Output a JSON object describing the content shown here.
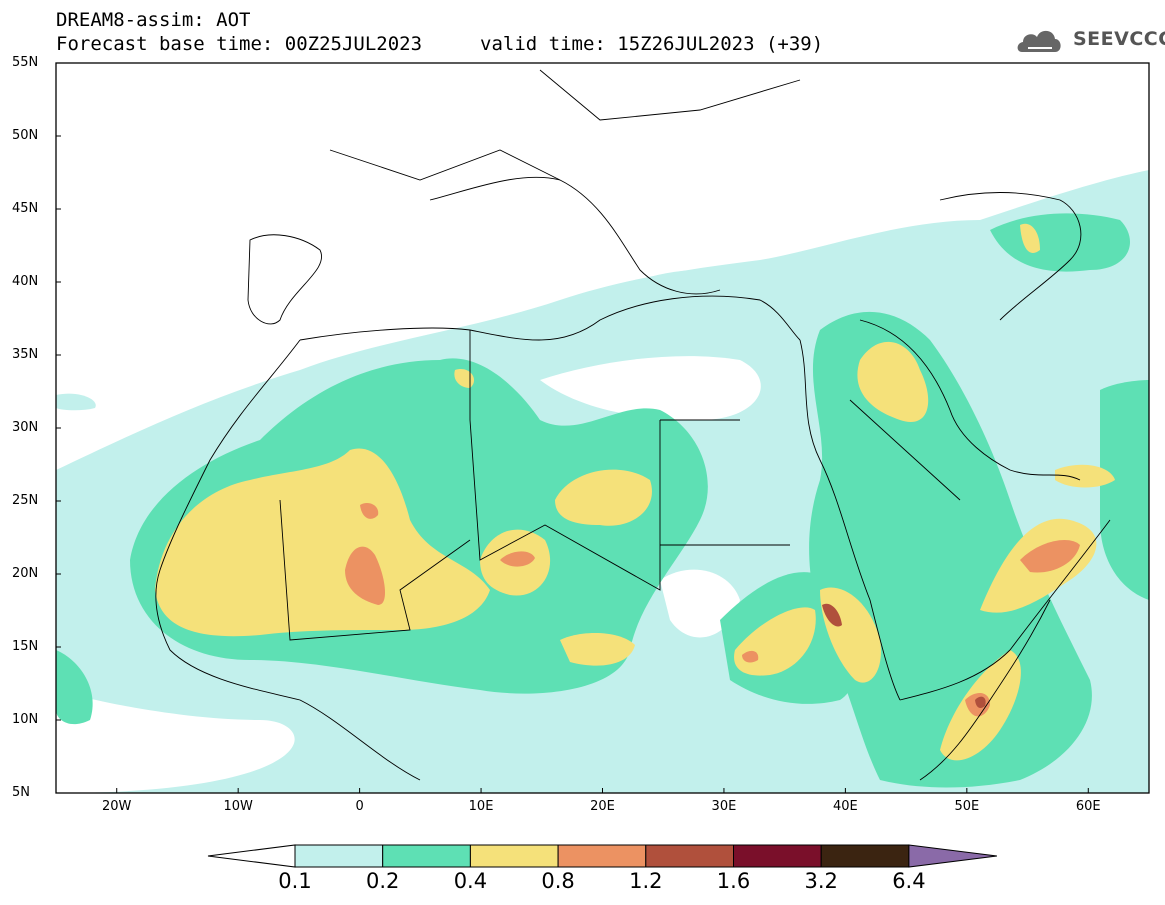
{
  "header": {
    "title_line1": "DREAM8-assim: AOT",
    "title_line2": "Forecast base time: 00Z25JUL2023",
    "valid_time": "valid time: 15Z26JUL2023 (+39)",
    "logo_text": "SEEVCCC"
  },
  "map": {
    "lat_labels": [
      "55N",
      "50N",
      "45N",
      "40N",
      "35N",
      "30N",
      "25N",
      "20N",
      "15N",
      "10N",
      "5N"
    ],
    "lon_labels": [
      "20W",
      "10W",
      "0",
      "10E",
      "20E",
      "30E",
      "40E",
      "50E",
      "60E"
    ]
  },
  "legend": {
    "levels": [
      "0.1",
      "0.2",
      "0.4",
      "0.8",
      "1.2",
      "1.6",
      "3.2",
      "6.4"
    ],
    "colors": [
      "#ffffff",
      "#c2f0ec",
      "#5ee0b4",
      "#f5e17a",
      "#ec9262",
      "#b0503c",
      "#7a0f2a",
      "#3b2411",
      "#8a6aa8"
    ]
  },
  "chart_data": {
    "type": "heatmap",
    "title": "DREAM8-assim: AOT",
    "variable": "AOT",
    "extent_lon": [
      -25,
      65
    ],
    "extent_lat": [
      5,
      55
    ],
    "levels": [
      0.1,
      0.2,
      0.4,
      0.8,
      1.2,
      1.6,
      3.2,
      6.4
    ]
  }
}
